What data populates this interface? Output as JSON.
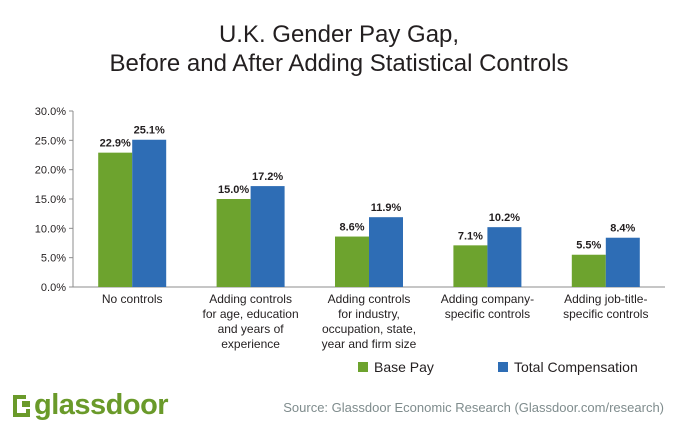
{
  "chart_data": {
    "type": "bar",
    "title_lines": [
      "U.K. Gender Pay Gap,",
      "Before and After Adding Statistical Controls"
    ],
    "categories": [
      [
        "No controls"
      ],
      [
        "Adding controls",
        "for age, education",
        "and years of",
        "experience"
      ],
      [
        "Adding controls",
        "for industry,",
        "occupation, state,",
        "year and firm size"
      ],
      [
        "Adding company-",
        "specific controls"
      ],
      [
        "Adding job-title-",
        "specific controls"
      ]
    ],
    "series": [
      {
        "name": "Base Pay",
        "color": "#6da32e",
        "values": [
          22.9,
          15.0,
          8.6,
          7.1,
          5.5
        ],
        "labels": [
          "22.9%",
          "15.0%",
          "8.6%",
          "7.1%",
          "5.5%"
        ]
      },
      {
        "name": "Total Compensation",
        "color": "#2e6db5",
        "values": [
          25.1,
          17.2,
          11.9,
          10.2,
          8.4
        ],
        "labels": [
          "25.1%",
          "17.2%",
          "11.9%",
          "10.2%",
          "8.4%"
        ]
      }
    ],
    "ylim": [
      0,
      30
    ],
    "yticks": [
      0,
      5,
      10,
      15,
      20,
      25,
      30
    ],
    "ytick_labels": [
      "0.0%",
      "5.0%",
      "10.0%",
      "15.0%",
      "20.0%",
      "25.0%",
      "30.0%"
    ],
    "legend_position": "bottom-right",
    "grid": false
  },
  "footer": {
    "logo_text": "glassdoor",
    "source": "Source: Glassdoor Economic Research (Glassdoor.com/research)"
  }
}
